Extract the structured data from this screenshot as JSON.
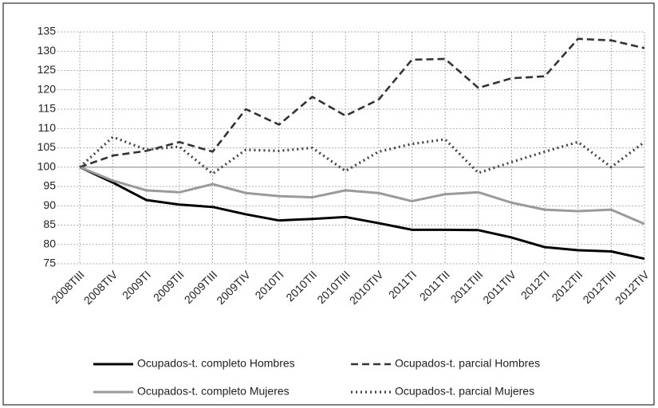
{
  "chart_data": {
    "type": "line",
    "categories": [
      "2008TIII",
      "2008TIV",
      "2009TI",
      "2009TII",
      "2009TIII",
      "2009TIV",
      "2010TI",
      "2010TII",
      "2010TIII",
      "2010TIV",
      "2011TI",
      "2011TII",
      "2011TIII",
      "2011TIV",
      "2012TI",
      "2012TII",
      "2012TIII",
      "2012TIV"
    ],
    "series": [
      {
        "name": "Ocupados-t. completo Hombres",
        "color": "#000000",
        "dash": "solid",
        "values": [
          100,
          96,
          91.5,
          90.3,
          89.7,
          87.8,
          86.2,
          86.6,
          87.1,
          85.5,
          83.8,
          83.8,
          83.7,
          81.8,
          79.3,
          78.5,
          78.2,
          76.3
        ]
      },
      {
        "name": "Ocupados-t. parcial Hombres",
        "color": "#333333",
        "dash": "dashed",
        "values": [
          100,
          103,
          104.2,
          106.5,
          104,
          115,
          111,
          118.2,
          113.3,
          117.5,
          127.8,
          128,
          120.5,
          123,
          123.5,
          133.2,
          132.8,
          130.8
        ]
      },
      {
        "name": "Ocupados-t. completo Mujeres",
        "color": "#9a9a9a",
        "dash": "solid",
        "values": [
          100,
          96.5,
          94,
          93.5,
          95.6,
          93.3,
          92.5,
          92.2,
          94,
          93.3,
          91.2,
          93,
          93.5,
          90.8,
          89,
          88.6,
          89,
          85.3
        ]
      },
      {
        "name": "Ocupados-t. parcial Mujeres",
        "color": "#444444",
        "dash": "dotted",
        "values": [
          100,
          107.8,
          104.5,
          105.3,
          98.3,
          104.5,
          104.2,
          105,
          99,
          104,
          106,
          107.2,
          98.5,
          101.3,
          104,
          106.5,
          100,
          106.5
        ]
      }
    ],
    "ylim": [
      75,
      135
    ],
    "yticks": [
      75,
      80,
      85,
      90,
      95,
      100,
      105,
      110,
      115,
      120,
      125,
      130,
      135
    ],
    "x_axis_at": 100,
    "grid": true,
    "legend": "bottom"
  }
}
